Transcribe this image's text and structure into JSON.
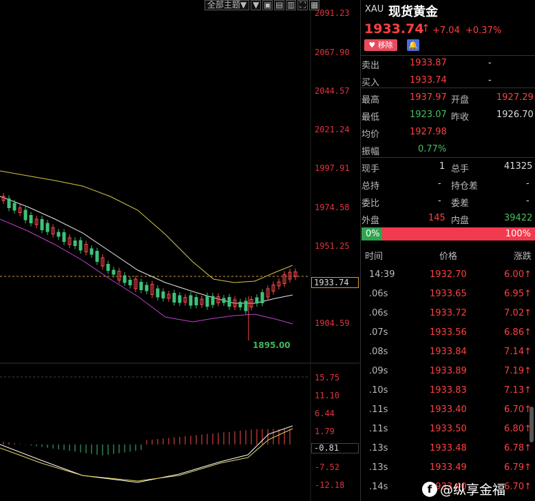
{
  "toolbar": {
    "theme_label": "全部主题▼"
  },
  "price_axis": [
    "2091.23",
    "2067.90",
    "2044.57",
    "2021.24",
    "1997.91",
    "1974.58",
    "1951.25",
    "1904.59"
  ],
  "macd_axis": [
    "15.75",
    "11.10",
    "6.44",
    "1.79",
    "-7.52",
    "-12.18"
  ],
  "current_price_tag": "1933.74",
  "macd_tag": "-0.81",
  "low_marker": "1895.00",
  "chart_data": {
    "type": "candlestick",
    "ylim": [
      1890,
      2095
    ],
    "current_line": 1933.74,
    "low": 1895.0
  },
  "quote": {
    "code": "XAU",
    "name": "现货黄金",
    "price": "1933.74",
    "change": "+7.04",
    "change_pct": "+0.37%",
    "remove_label": "移除",
    "colors": {
      "up": "#ff4040",
      "down": "#46c05c"
    }
  },
  "orderbook": {
    "sell_label": "卖出",
    "sell_price": "1933.87",
    "sell_vol": "-",
    "buy_label": "买入",
    "buy_price": "1933.74",
    "buy_vol": "-"
  },
  "stats": {
    "high_label": "最高",
    "high": "1937.97",
    "open_label": "开盘",
    "open": "1927.29",
    "low_label": "最低",
    "low": "1923.07",
    "prev_label": "昨收",
    "prev": "1926.70",
    "avg_label": "均价",
    "avg": "1927.98",
    "amp_label": "振幅",
    "amp": "0.77%",
    "cur_vol_label": "现手",
    "cur_vol": "1",
    "total_vol_label": "总手",
    "total_vol": "41325",
    "hold_label": "总持",
    "hold": "-",
    "hold_diff_label": "持仓差",
    "hold_diff": "-",
    "ratio_label": "委比",
    "ratio": "-",
    "diff_label": "委差",
    "diff": "-",
    "outer_label": "外盘",
    "outer": "145",
    "inner_label": "内盘",
    "inner": "39422"
  },
  "ratio_bar": {
    "left": "0%",
    "right": "100%"
  },
  "ticks_header": {
    "time": "时间",
    "price": "价格",
    "change": "涨跌"
  },
  "ticks": [
    {
      "time": "14:39",
      "price": "1932.70",
      "change": "6.00"
    },
    {
      "time": ".06s",
      "price": "1933.65",
      "change": "6.95"
    },
    {
      "time": ".06s",
      "price": "1933.72",
      "change": "7.02"
    },
    {
      "time": ".07s",
      "price": "1933.56",
      "change": "6.86"
    },
    {
      "time": ".08s",
      "price": "1933.84",
      "change": "7.14"
    },
    {
      "time": ".09s",
      "price": "1933.89",
      "change": "7.19"
    },
    {
      "time": ".10s",
      "price": "1933.83",
      "change": "7.13"
    },
    {
      "time": ".11s",
      "price": "1933.40",
      "change": "6.70"
    },
    {
      "time": ".11s",
      "price": "1933.50",
      "change": "6.80"
    },
    {
      "time": ".13s",
      "price": "1933.48",
      "change": "6.78"
    },
    {
      "time": ".13s",
      "price": "1933.49",
      "change": "6.79"
    },
    {
      "time": ".14s",
      "price": "1933.40",
      "change": "6.70"
    }
  ],
  "watermark": "@纵享金福"
}
